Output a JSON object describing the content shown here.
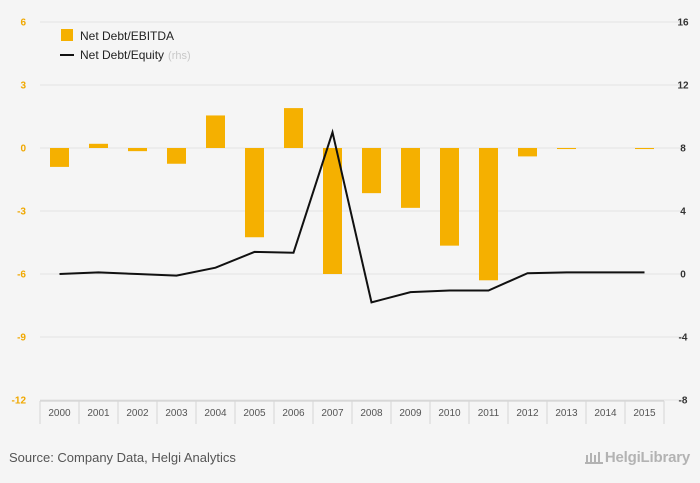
{
  "chart_data": {
    "type": "bar+line",
    "categories": [
      "2000",
      "2001",
      "2002",
      "2003",
      "2004",
      "2005",
      "2006",
      "2007",
      "2008",
      "2009",
      "2010",
      "2011",
      "2012",
      "2013",
      "2014",
      "2015"
    ],
    "series": [
      {
        "name": "Net Debt/EBITDA",
        "type": "bar",
        "axis": "left",
        "color": "#f5b000",
        "values": [
          -0.9,
          0.2,
          -0.15,
          -0.75,
          1.55,
          -4.25,
          1.9,
          -6.0,
          -2.15,
          -2.85,
          -4.65,
          -6.3,
          -0.4,
          -0.05,
          0.0,
          -0.05
        ]
      },
      {
        "name": "Net Debt/Equity",
        "name_suffix": "(rhs)",
        "type": "line",
        "axis": "right",
        "color": "#111111",
        "values": [
          0.0,
          0.1,
          0.0,
          -0.1,
          0.4,
          1.4,
          1.35,
          9.0,
          -1.8,
          -1.15,
          -1.05,
          -1.05,
          0.05,
          0.1,
          0.1,
          0.1
        ]
      }
    ],
    "y_left": {
      "ylim": [
        -12,
        6
      ],
      "ticks": [
        "6",
        "3",
        "0",
        "-3",
        "-6",
        "-9",
        "-12"
      ]
    },
    "y_right": {
      "ylim": [
        -8,
        16
      ],
      "ticks": [
        "16",
        "12",
        "8",
        "4",
        "0",
        "-4",
        "-8"
      ]
    },
    "grid": true,
    "legend_position": "top-left"
  },
  "footer": {
    "source": "Source: Company Data, Helgi Analytics",
    "logo": "HelgiLibrary"
  }
}
